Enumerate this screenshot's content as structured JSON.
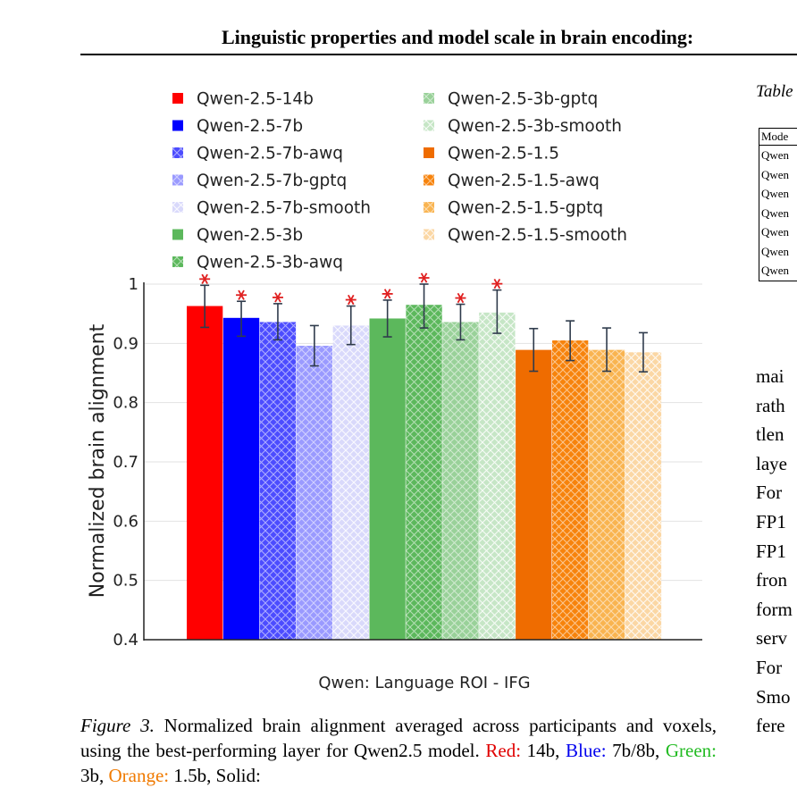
{
  "header": {
    "running_title": "Linguistic properties and model scale in brain encoding:"
  },
  "figure": {
    "legend": [
      {
        "label": "Qwen-2.5-14b",
        "color": "#ff0000",
        "hatch": "none"
      },
      {
        "label": "Qwen-2.5-7b",
        "color": "#0000ff",
        "hatch": "none"
      },
      {
        "label": "Qwen-2.5-7b-awq",
        "color": "#4c4cff",
        "hatch": "dense"
      },
      {
        "label": "Qwen-2.5-7b-gptq",
        "color": "#9a9aff",
        "hatch": "dense"
      },
      {
        "label": "Qwen-2.5-7b-smooth",
        "color": "#d9d9fb",
        "hatch": "light"
      },
      {
        "label": "Qwen-2.5-3b",
        "color": "#5cb85c",
        "hatch": "none"
      },
      {
        "label": "Qwen-2.5-3b-awq",
        "color": "#5cb85c",
        "hatch": "dense"
      },
      {
        "label": "Qwen-2.5-3b-gptq",
        "color": "#99d199",
        "hatch": "dense"
      },
      {
        "label": "Qwen-2.5-3b-smooth",
        "color": "#c6e6c6",
        "hatch": "light"
      },
      {
        "label": "Qwen-2.5-1.5",
        "color": "#ef6c00",
        "hatch": "none"
      },
      {
        "label": "Qwen-2.5-1.5-awq",
        "color": "#f7830c",
        "hatch": "dense"
      },
      {
        "label": "Qwen-2.5-1.5-gptq",
        "color": "#f9b450",
        "hatch": "dense"
      },
      {
        "label": "Qwen-2.5-1.5-smooth",
        "color": "#fbd7a4",
        "hatch": "light"
      }
    ]
  },
  "chart_data": {
    "type": "bar",
    "title": "",
    "xlabel": "Qwen: Language ROI - IFG",
    "ylabel": "Normalized brain alignment",
    "ylim": [
      0.4,
      1.0
    ],
    "yticks": [
      "0.4",
      "0.5",
      "0.6",
      "0.7",
      "0.8",
      "0.9",
      "1"
    ],
    "grid": true,
    "legend_placement": "top",
    "categories": [
      "Qwen-2.5-14b",
      "Qwen-2.5-7b",
      "Qwen-2.5-7b-awq",
      "Qwen-2.5-7b-gptq",
      "Qwen-2.5-7b-smooth",
      "Qwen-2.5-3b",
      "Qwen-2.5-3b-awq",
      "Qwen-2.5-3b-gptq",
      "Qwen-2.5-3b-smooth",
      "Qwen-2.5-1.5",
      "Qwen-2.5-1.5-awq",
      "Qwen-2.5-1.5-gptq",
      "Qwen-2.5-1.5-smooth"
    ],
    "values": [
      0.963,
      0.943,
      0.936,
      0.896,
      0.93,
      0.942,
      0.965,
      0.936,
      0.952,
      0.889,
      0.905,
      0.889,
      0.885
    ],
    "err_low": [
      0.927,
      0.912,
      0.906,
      0.862,
      0.898,
      0.911,
      0.926,
      0.906,
      0.917,
      0.853,
      0.871,
      0.853,
      0.852
    ],
    "err_high": [
      0.998,
      0.971,
      0.967,
      0.93,
      0.963,
      0.973,
      1.0,
      0.966,
      0.99,
      0.925,
      0.938,
      0.926,
      0.918
    ],
    "significant": [
      true,
      true,
      true,
      false,
      true,
      true,
      true,
      true,
      true,
      false,
      false,
      false,
      false
    ]
  },
  "caption": {
    "fig_label": "Figure 3.",
    "text_1": " Normalized brain alignment averaged across participants and voxels, using the best-performing layer for Qwen2.5 model. ",
    "red": "Red:",
    "t_red": " 14b, ",
    "blue": "Blue:",
    "t_blue": " 7b/8b, ",
    "green": "Green:",
    "t_green": "  3b, ",
    "orange": "Orange:",
    "t_orange": " 1.5b, Solid:"
  },
  "right_column": {
    "table_label": "Table",
    "table_header": "Mode",
    "table_rows": [
      "Qwen",
      "Qwen",
      "Qwen",
      "Qwen",
      "Qwen",
      "Qwen",
      "Qwen"
    ],
    "body_lines": [
      "mai",
      "rath",
      "tlen",
      "laye",
      "For",
      "FP1",
      "FP1",
      "fron",
      "form",
      "serv",
      "For",
      "Smo",
      "fere"
    ]
  }
}
